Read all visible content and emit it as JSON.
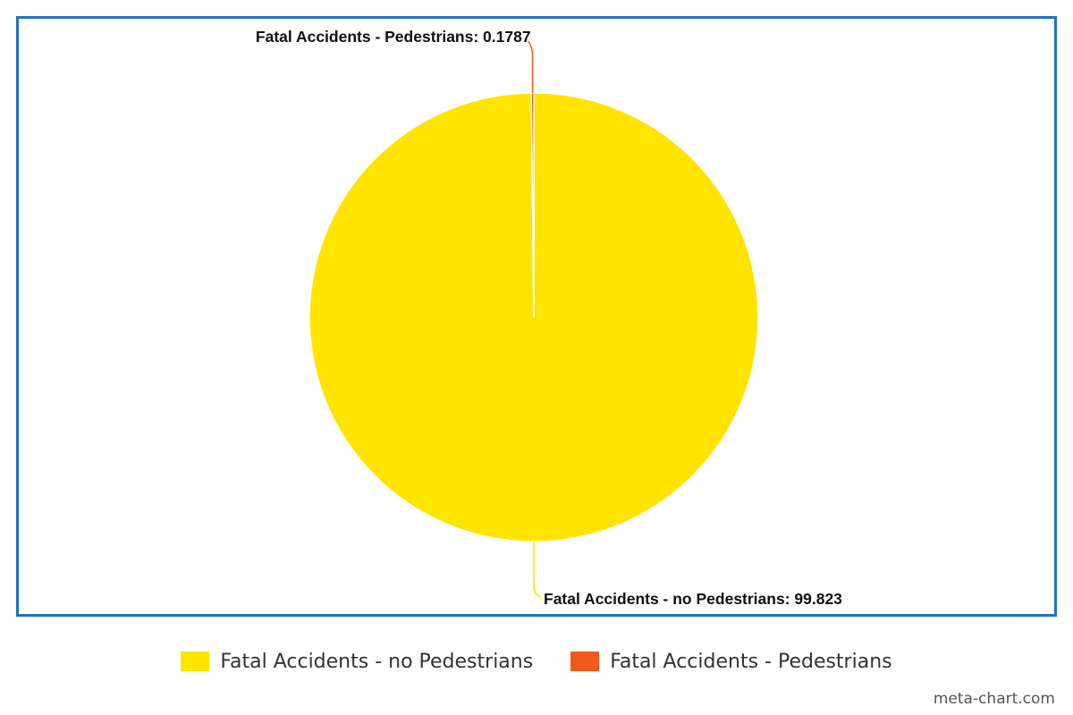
{
  "chart_data": {
    "type": "pie",
    "title": "",
    "series": [
      {
        "name": "Fatal Accidents - no Pedestrians",
        "value": 99.823,
        "label": "Fatal Accidents - no Pedestrians: 99.823"
      },
      {
        "name": "Fatal Accidents - Pedestrians",
        "value": 0.1787,
        "label": "Fatal Accidents - Pedestrians: 0.1787"
      }
    ],
    "start_angle_deg": 0,
    "direction": "clockwise",
    "legend_position": "bottom"
  },
  "colors": {
    "no_pedestrians": "#ffe400",
    "pedestrians": "#ef5a1e",
    "frame_border": "#1e73be"
  },
  "legend": {
    "items": [
      {
        "label": "Fatal Accidents - no Pedestrians"
      },
      {
        "label": "Fatal Accidents - Pedestrians"
      }
    ]
  },
  "watermark": "meta-chart.com"
}
